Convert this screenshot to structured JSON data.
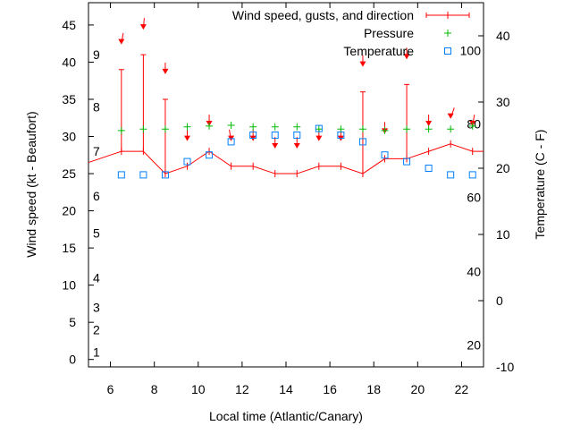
{
  "chart_data": {
    "type": "line",
    "title": "",
    "xlabel": "Local time (Atlantic/Canary)",
    "ylabel": "Wind speed (kt - Beaufort)",
    "y2label": "Temperature (C - F)",
    "xlim": [
      5,
      23
    ],
    "ylim": [
      -1,
      48
    ],
    "y2lim": [
      -10,
      45
    ],
    "grid": false,
    "legend_position": "top-right",
    "x_ticks": [
      6,
      8,
      10,
      12,
      14,
      16,
      18,
      20,
      22
    ],
    "y_ticks": [
      0,
      5,
      10,
      15,
      20,
      25,
      30,
      35,
      40,
      45
    ],
    "y2_ticks": [
      -10,
      0,
      10,
      20,
      30,
      40
    ],
    "beaufort_labels": [
      {
        "label": "1",
        "kt": 1
      },
      {
        "label": "2",
        "kt": 4
      },
      {
        "label": "3",
        "kt": 7
      },
      {
        "label": "4",
        "kt": 11
      },
      {
        "label": "5",
        "kt": 17
      },
      {
        "label": "6",
        "kt": 22
      },
      {
        "label": "7",
        "kt": 28
      },
      {
        "label": "8",
        "kt": 34
      },
      {
        "label": "9",
        "kt": 41
      }
    ],
    "fahrenheit_labels": [
      {
        "label": "20",
        "c": -6.7
      },
      {
        "label": "40",
        "c": 4.4
      },
      {
        "label": "60",
        "c": 15.6
      },
      {
        "label": "80",
        "c": 26.7
      },
      {
        "label": "100",
        "c": 37.8
      }
    ],
    "legend": [
      "Wind speed, gusts, and direction",
      "Pressure",
      "Temperature"
    ],
    "x": [
      6.5,
      7.5,
      8.5,
      9.5,
      10.5,
      11.5,
      12.5,
      13.5,
      14.5,
      15.5,
      16.5,
      17.5,
      18.5,
      19.5,
      20.5,
      21.5,
      22.5
    ],
    "series": [
      {
        "name": "Wind speed",
        "axis": "y",
        "color": "#ff0000",
        "values": [
          28,
          28,
          25,
          26,
          28,
          26,
          26,
          25,
          25,
          26,
          26,
          25,
          27,
          27,
          28,
          29,
          28
        ],
        "line_start": [
          5,
          26.5
        ],
        "line_end": [
          23,
          28
        ]
      },
      {
        "name": "Gusts",
        "axis": "y",
        "color": "#ff0000",
        "values": [
          39,
          41,
          35,
          null,
          null,
          null,
          null,
          null,
          null,
          null,
          null,
          36,
          null,
          37,
          null,
          null,
          null
        ]
      },
      {
        "name": "Wind direction arrow",
        "axis": "y",
        "color": "#ff0000",
        "values": [
          42.5,
          44.5,
          38.5,
          29.5,
          31.5,
          29.5,
          29.5,
          28.5,
          28.5,
          29.5,
          29.5,
          39.5,
          30.5,
          40.5,
          31.5,
          32.5,
          31.5
        ],
        "direction_deg": [
          350,
          355,
          0,
          0,
          0,
          10,
          0,
          0,
          0,
          0,
          0,
          0,
          0,
          0,
          0,
          340,
          350
        ]
      },
      {
        "name": "Pressure",
        "axis": "y",
        "color": "#00bb00",
        "values": [
          30.8,
          31,
          31,
          31.3,
          31.4,
          31.5,
          31.3,
          31.3,
          31.3,
          31,
          31,
          31,
          30.8,
          31,
          31,
          31,
          31.4
        ]
      },
      {
        "name": "Temperature",
        "axis": "y2",
        "color": "#0080ff",
        "values": [
          19,
          19,
          19,
          21,
          22,
          24,
          25,
          25,
          25,
          26,
          25,
          24,
          22,
          21,
          20,
          19,
          19
        ]
      }
    ]
  }
}
